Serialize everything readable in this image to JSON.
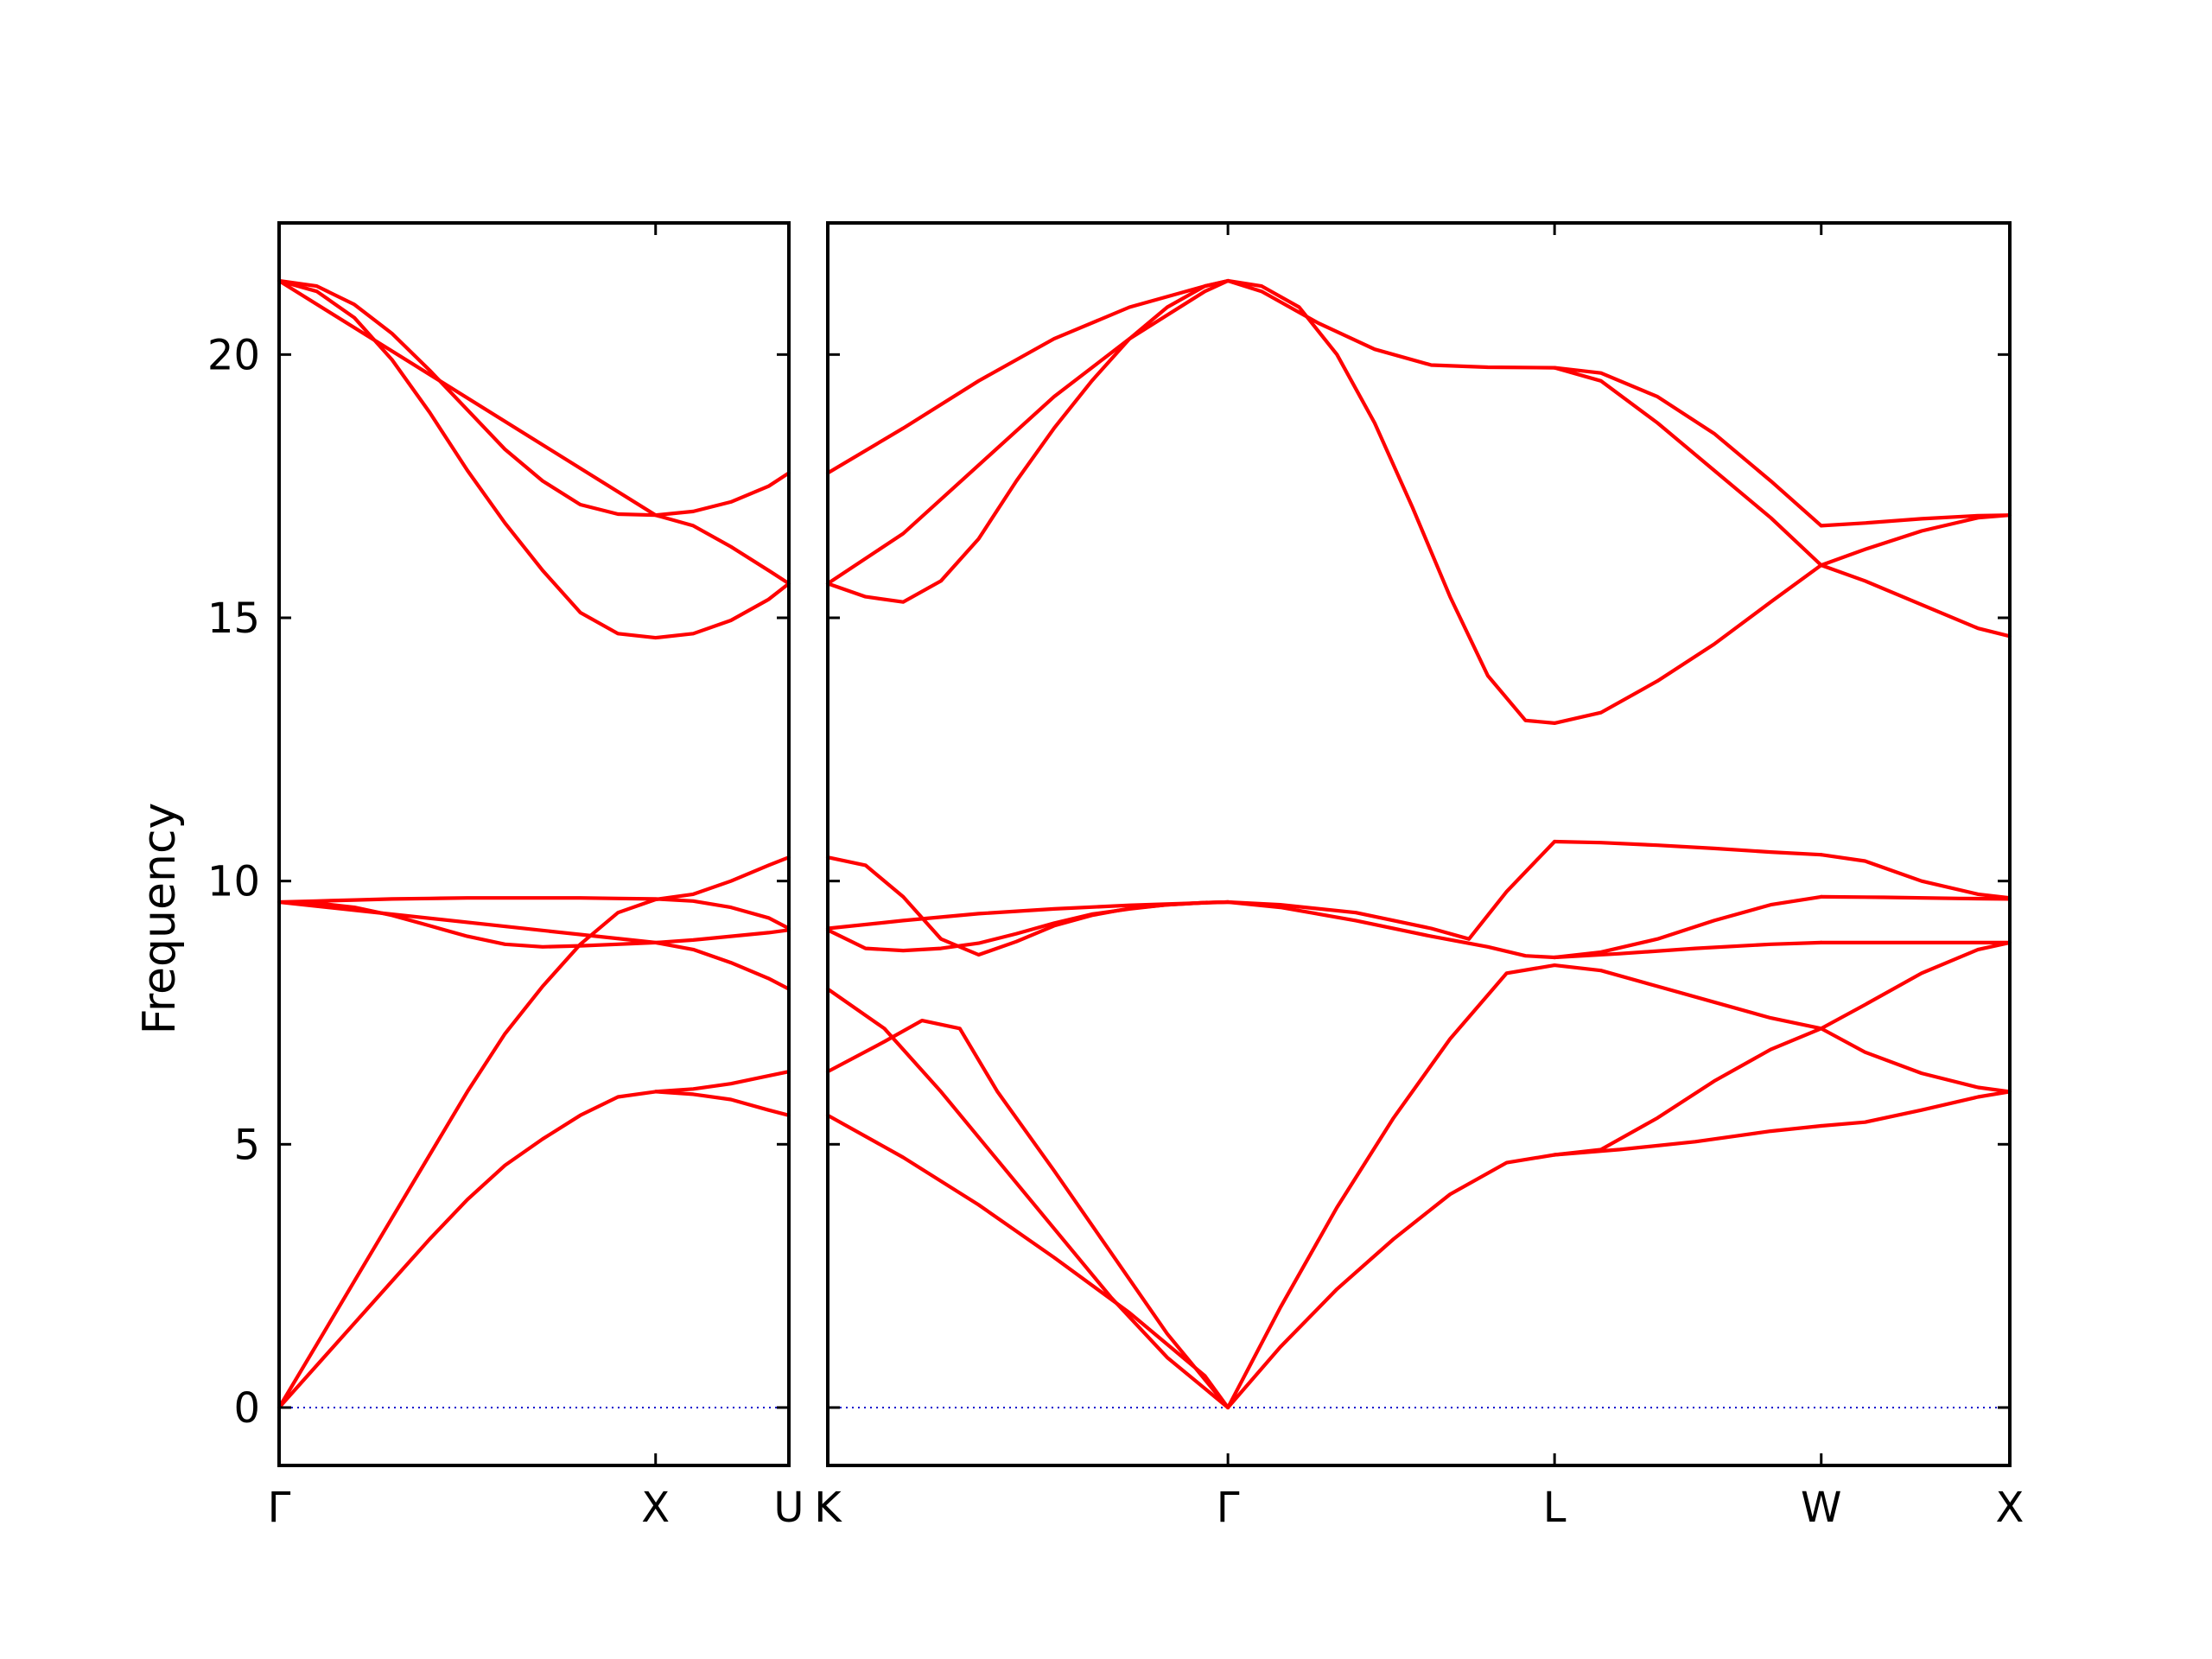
{
  "chart_data": {
    "type": "line",
    "ylabel": "Frequency",
    "ylim": [
      -1.1,
      22.5
    ],
    "yticks": [
      0,
      5,
      10,
      15,
      20
    ],
    "grid": false,
    "line_color": "#ff0000",
    "zero_line_color": "#0000cc",
    "panels": [
      {
        "xticks": [
          {
            "label": "Γ",
            "x": 0
          },
          {
            "label": "X",
            "x": 1
          },
          {
            "label": "U",
            "x": 1.354
          }
        ],
        "series": [
          {
            "x": [
              0,
              0.1,
              0.2,
              0.3,
              0.4,
              0.5,
              0.6,
              0.7,
              0.8,
              0.9,
              1.0,
              1.1,
              1.2,
              1.3,
              1.354
            ],
            "y": [
              0,
              0.8,
              1.6,
              2.4,
              3.2,
              3.95,
              4.6,
              5.1,
              5.55,
              5.9,
              6.0,
              6.05,
              6.15,
              6.3,
              6.38
            ]
          },
          {
            "x": [
              0,
              0.1,
              0.2,
              0.3,
              0.4,
              0.5,
              0.6,
              0.7,
              0.8,
              0.9,
              1.0,
              1.1,
              1.2,
              1.3,
              1.354
            ],
            "y": [
              0,
              1.2,
              2.4,
              3.6,
              4.8,
              6.0,
              7.1,
              8.0,
              8.8,
              9.4,
              9.65,
              9.75,
              10.0,
              10.3,
              10.45
            ]
          },
          {
            "x": [
              0,
              0.1,
              0.2,
              0.3,
              0.4,
              0.5,
              0.6,
              0.7,
              0.8,
              0.9,
              1.0,
              1.1,
              1.2,
              1.3,
              1.354
            ],
            "y": [
              9.6,
              9.58,
              9.5,
              9.35,
              9.15,
              8.95,
              8.8,
              8.75,
              8.77,
              8.8,
              8.83,
              8.88,
              8.95,
              9.02,
              9.07
            ]
          },
          {
            "x": [
              0,
              0.1,
              0.2,
              0.3,
              0.4,
              0.5,
              0.6,
              0.7,
              0.8,
              0.9,
              1.0,
              1.1,
              1.2,
              1.3,
              1.354
            ],
            "y": [
              9.6,
              9.62,
              9.64,
              9.66,
              9.67,
              9.68,
              9.68,
              9.68,
              9.68,
              9.67,
              9.66,
              9.62,
              9.5,
              9.3,
              9.1
            ]
          },
          {
            "x": [
              0,
              1.0,
              1.1,
              1.2,
              1.3,
              1.354
            ],
            "y": [
              9.6,
              8.83,
              8.7,
              8.45,
              8.15,
              7.95
            ]
          },
          {
            "x": [
              1.0,
              1.1,
              1.2,
              1.3,
              1.354
            ],
            "y": [
              6.0,
              5.95,
              5.85,
              5.65,
              5.55
            ]
          },
          {
            "x": [
              0,
              0.1,
              0.2,
              0.3,
              0.4,
              0.5,
              0.6,
              0.7,
              0.8,
              0.9,
              1.0,
              1.1,
              1.2,
              1.3,
              1.354
            ],
            "y": [
              21.4,
              21.2,
              20.7,
              19.9,
              18.9,
              17.8,
              16.8,
              15.9,
              15.1,
              14.7,
              14.62,
              14.7,
              14.95,
              15.35,
              15.65
            ]
          },
          {
            "x": [
              0,
              0.1,
              0.2,
              0.3,
              0.4,
              0.5,
              0.6,
              0.7,
              0.8,
              0.9,
              1.0,
              1.1,
              1.2,
              1.3,
              1.354
            ],
            "y": [
              21.4,
              21.3,
              20.95,
              20.4,
              19.7,
              18.95,
              18.2,
              17.6,
              17.15,
              16.97,
              16.95,
              17.02,
              17.2,
              17.5,
              17.75
            ]
          },
          {
            "x": [
              0,
              1.0,
              1.1,
              1.2,
              1.3,
              1.354
            ],
            "y": [
              21.4,
              16.95,
              16.75,
              16.35,
              15.9,
              15.65
            ]
          }
        ]
      },
      {
        "xticks": [
          {
            "label": "K",
            "x": 0
          },
          {
            "label": "Γ",
            "x": 1.061
          },
          {
            "label": "L",
            "x": 1.927
          },
          {
            "label": "W",
            "x": 2.634
          },
          {
            "label": "X",
            "x": 3.134
          }
        ],
        "series": [
          {
            "x": [
              0,
              0.2,
              0.4,
              0.6,
              0.8,
              1.0,
              1.061
            ],
            "y": [
              5.55,
              4.75,
              3.85,
              2.85,
              1.8,
              0.6,
              0
            ]
          },
          {
            "x": [
              0,
              0.15,
              0.3,
              0.45,
              0.6,
              0.75,
              0.9,
              1.061
            ],
            "y": [
              7.95,
              7.2,
              6.0,
              4.7,
              3.4,
              2.1,
              0.95,
              0
            ]
          },
          {
            "x": [
              0,
              0.15,
              0.25,
              0.35,
              0.45,
              0.6,
              0.75,
              0.9,
              1.061
            ],
            "y": [
              6.38,
              6.95,
              7.35,
              7.2,
              6.0,
              4.5,
              2.95,
              1.4,
              0
            ]
          },
          {
            "x": [
              0,
              0.1,
              0.2,
              0.3,
              0.4,
              0.5,
              0.6,
              0.7,
              0.8,
              0.9,
              1.0,
              1.061
            ],
            "y": [
              9.07,
              8.72,
              8.68,
              8.72,
              8.82,
              9.0,
              9.2,
              9.37,
              9.47,
              9.55,
              9.59,
              9.6
            ]
          },
          {
            "x": [
              0,
              0.1,
              0.2,
              0.3,
              0.4,
              0.5,
              0.6,
              0.7,
              0.8,
              0.9,
              1.0,
              1.061
            ],
            "y": [
              10.45,
              10.3,
              9.7,
              8.9,
              8.6,
              8.85,
              9.15,
              9.35,
              9.48,
              9.55,
              9.59,
              9.6
            ]
          },
          {
            "x": [
              0,
              0.2,
              0.4,
              0.6,
              0.8,
              1.061
            ],
            "y": [
              9.1,
              9.25,
              9.38,
              9.47,
              9.54,
              9.6
            ]
          },
          {
            "x": [
              0,
              0.1,
              0.2,
              0.3,
              0.4,
              0.5,
              0.6,
              0.7,
              0.8,
              0.9,
              1.0,
              1.061
            ],
            "y": [
              15.65,
              15.4,
              15.3,
              15.7,
              16.5,
              17.6,
              18.6,
              19.5,
              20.3,
              20.9,
              21.3,
              21.4
            ]
          },
          {
            "x": [
              0,
              0.2,
              0.4,
              0.6,
              0.8,
              1.0,
              1.061
            ],
            "y": [
              15.65,
              16.6,
              17.9,
              19.2,
              20.3,
              21.2,
              21.4
            ]
          },
          {
            "x": [
              0,
              0.2,
              0.4,
              0.6,
              0.8,
              1.0,
              1.061
            ],
            "y": [
              17.75,
              18.6,
              19.5,
              20.3,
              20.9,
              21.3,
              21.4
            ]
          },
          {
            "x": [
              1.061,
              1.2,
              1.35,
              1.5,
              1.65,
              1.8,
              1.927
            ],
            "y": [
              0,
              1.9,
              3.8,
              5.5,
              7.0,
              8.25,
              8.4
            ]
          },
          {
            "x": [
              1.061,
              1.2,
              1.35,
              1.5,
              1.65,
              1.8,
              1.927
            ],
            "y": [
              0,
              1.15,
              2.25,
              3.2,
              4.05,
              4.65,
              4.8
            ]
          },
          {
            "x": [
              1.061,
              1.2,
              1.4,
              1.6,
              1.75,
              1.85,
              1.927
            ],
            "y": [
              9.6,
              9.5,
              9.25,
              8.95,
              8.75,
              8.58,
              8.55
            ]
          },
          {
            "x": [
              1.061,
              1.2,
              1.4,
              1.6,
              1.7,
              1.8,
              1.927
            ],
            "y": [
              9.6,
              9.55,
              9.4,
              9.1,
              8.9,
              9.8,
              10.75
            ]
          },
          {
            "x": [
              1.061,
              1.15,
              1.3,
              1.45,
              1.6,
              1.75,
              1.927
            ],
            "y": [
              21.4,
              21.2,
              20.6,
              20.1,
              19.8,
              19.76,
              19.75
            ]
          },
          {
            "x": [
              1.061,
              1.15,
              1.25,
              1.35,
              1.45,
              1.55,
              1.65,
              1.75,
              1.85,
              1.927
            ],
            "y": [
              21.4,
              21.3,
              20.9,
              20.0,
              18.7,
              17.1,
              15.4,
              13.9,
              13.05,
              13.0
            ]
          },
          {
            "x": [
              1.927,
              2.05,
              2.2,
              2.35,
              2.5,
              2.634
            ],
            "y": [
              19.75,
              19.5,
              18.7,
              17.8,
              16.9,
              16.0
            ]
          },
          {
            "x": [
              1.927,
              2.05,
              2.2,
              2.35,
              2.5,
              2.634
            ],
            "y": [
              19.75,
              19.65,
              19.2,
              18.5,
              17.6,
              16.75
            ]
          },
          {
            "x": [
              1.927,
              2.05,
              2.2,
              2.35,
              2.5,
              2.634
            ],
            "y": [
              13.0,
              13.2,
              13.8,
              14.5,
              15.3,
              16.0
            ]
          },
          {
            "x": [
              1.927,
              2.05,
              2.2,
              2.35,
              2.5,
              2.634
            ],
            "y": [
              10.75,
              10.73,
              10.68,
              10.62,
              10.55,
              10.5
            ]
          },
          {
            "x": [
              1.927,
              2.05,
              2.2,
              2.35,
              2.5,
              2.634
            ],
            "y": [
              8.55,
              8.65,
              8.9,
              9.25,
              9.55,
              9.7
            ]
          },
          {
            "x": [
              1.927,
              2.1,
              2.3,
              2.5,
              2.634
            ],
            "y": [
              8.55,
              8.62,
              8.72,
              8.8,
              8.83
            ]
          },
          {
            "x": [
              1.927,
              2.05,
              2.2,
              2.35,
              2.5,
              2.634
            ],
            "y": [
              8.4,
              8.3,
              8.0,
              7.7,
              7.4,
              7.2
            ]
          },
          {
            "x": [
              1.927,
              2.05,
              2.2,
              2.35,
              2.5,
              2.634
            ],
            "y": [
              4.8,
              4.9,
              5.5,
              6.2,
              6.8,
              7.2
            ]
          },
          {
            "x": [
              1.927,
              2.1,
              2.3,
              2.5,
              2.634
            ],
            "y": [
              4.8,
              4.9,
              5.05,
              5.25,
              5.35
            ]
          },
          {
            "x": [
              2.634,
              2.75,
              2.9,
              3.05,
              3.134
            ],
            "y": [
              16.75,
              16.8,
              16.88,
              16.94,
              16.95
            ]
          },
          {
            "x": [
              2.634,
              2.75,
              2.9,
              3.05,
              3.134
            ],
            "y": [
              16.0,
              16.3,
              16.65,
              16.9,
              16.95
            ]
          },
          {
            "x": [
              2.634,
              2.75,
              2.9,
              3.05,
              3.134
            ],
            "y": [
              16.0,
              15.7,
              15.25,
              14.8,
              14.65
            ]
          },
          {
            "x": [
              2.634,
              2.75,
              2.9,
              3.05,
              3.134
            ],
            "y": [
              10.5,
              10.38,
              10.0,
              9.75,
              9.68
            ]
          },
          {
            "x": [
              2.634,
              2.8,
              3.0,
              3.134
            ],
            "y": [
              9.7,
              9.69,
              9.67,
              9.66
            ]
          },
          {
            "x": [
              2.634,
              3.134
            ],
            "y": [
              8.83,
              8.83
            ]
          },
          {
            "x": [
              2.634,
              2.75,
              2.9,
              3.05,
              3.134
            ],
            "y": [
              7.2,
              7.65,
              8.25,
              8.7,
              8.83
            ]
          },
          {
            "x": [
              2.634,
              2.75,
              2.9,
              3.05,
              3.134
            ],
            "y": [
              7.2,
              6.75,
              6.35,
              6.08,
              6.0
            ]
          },
          {
            "x": [
              2.634,
              2.75,
              2.9,
              3.05,
              3.134
            ],
            "y": [
              5.35,
              5.42,
              5.65,
              5.9,
              6.0
            ]
          }
        ]
      }
    ]
  }
}
